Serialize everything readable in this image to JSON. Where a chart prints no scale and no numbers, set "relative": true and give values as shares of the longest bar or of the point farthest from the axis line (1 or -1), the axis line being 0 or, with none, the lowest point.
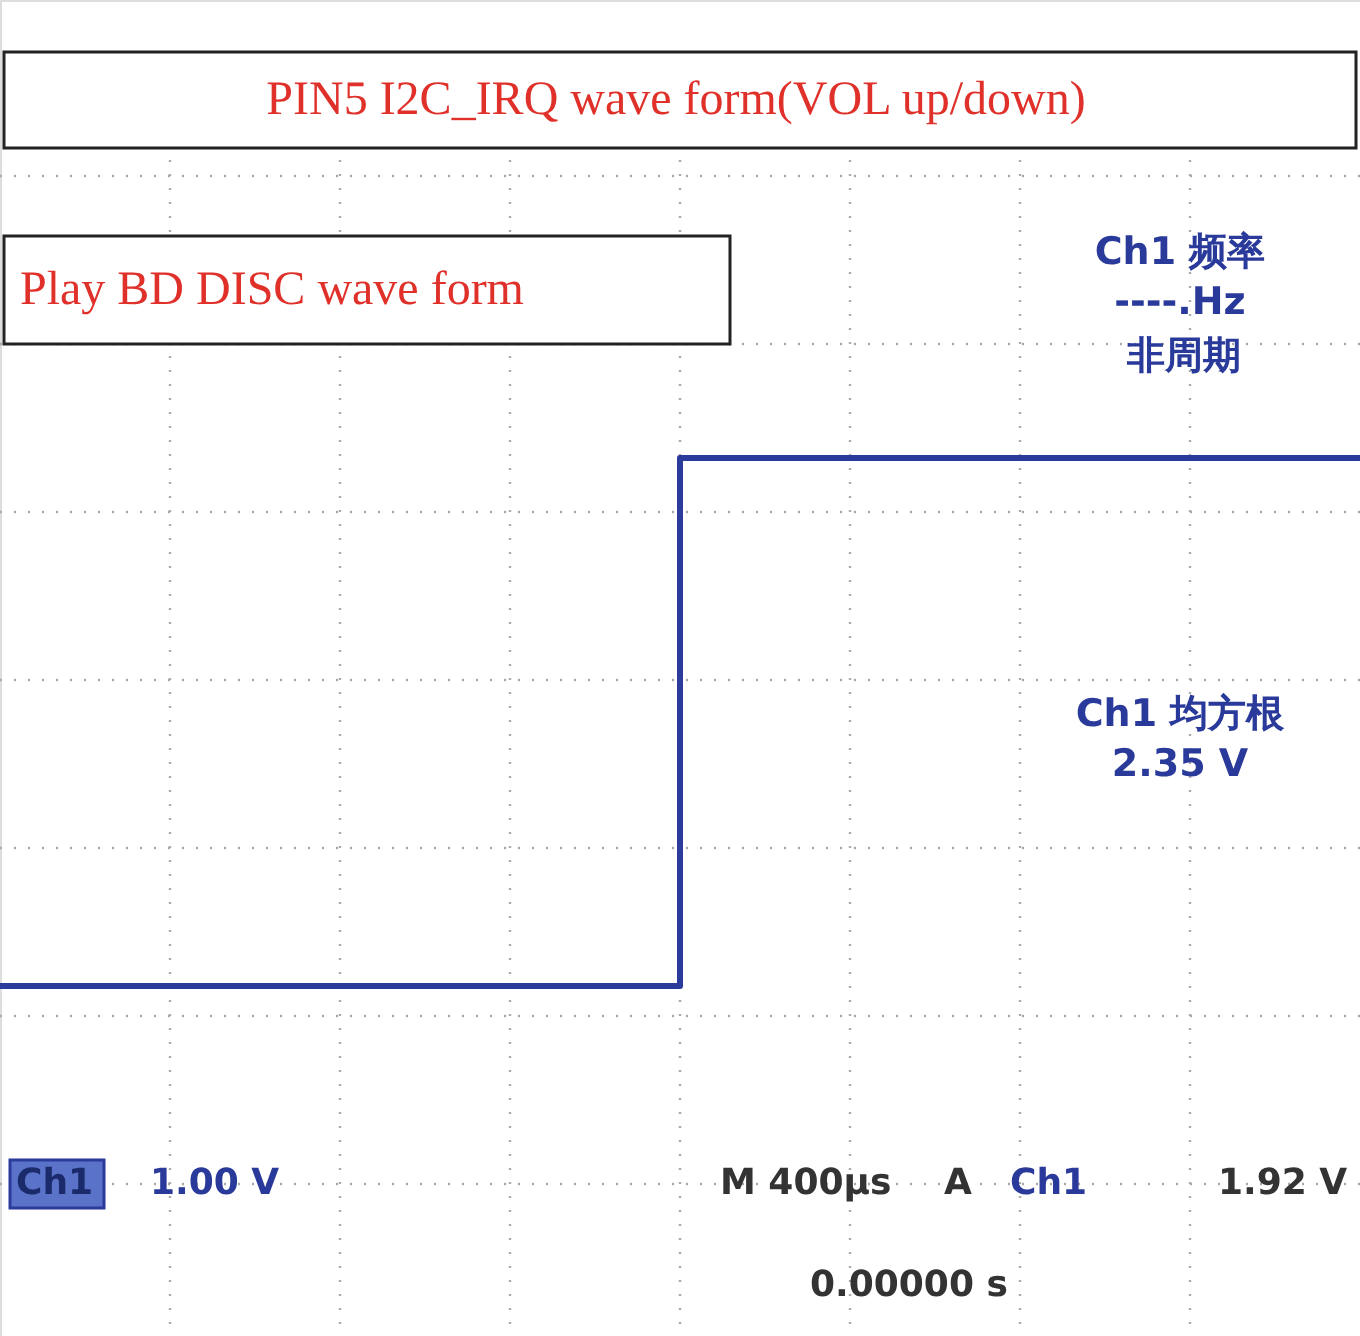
{
  "chart_data": {
    "type": "step",
    "title": "PIN5 I2C_IRQ wave form(VOL up/down)",
    "categories": [
      null,
      null,
      null
    ],
    "series": [
      {
        "color": "#2b3b9c",
        "values": [
          0,
          1,
          1
        ]
      }
    ],
    "relative": true,
    "grid": true,
    "annotations": [
      "Play BD DISC wave form",
      "Ch1 频率",
      "----.Hz",
      "非周期",
      "Ch1 均方根",
      "2.35 V",
      "Ch1",
      "1.00 V",
      "M 400µs",
      "A",
      "Ch1",
      "1.92 V",
      "0.00000 s"
    ]
  }
}
